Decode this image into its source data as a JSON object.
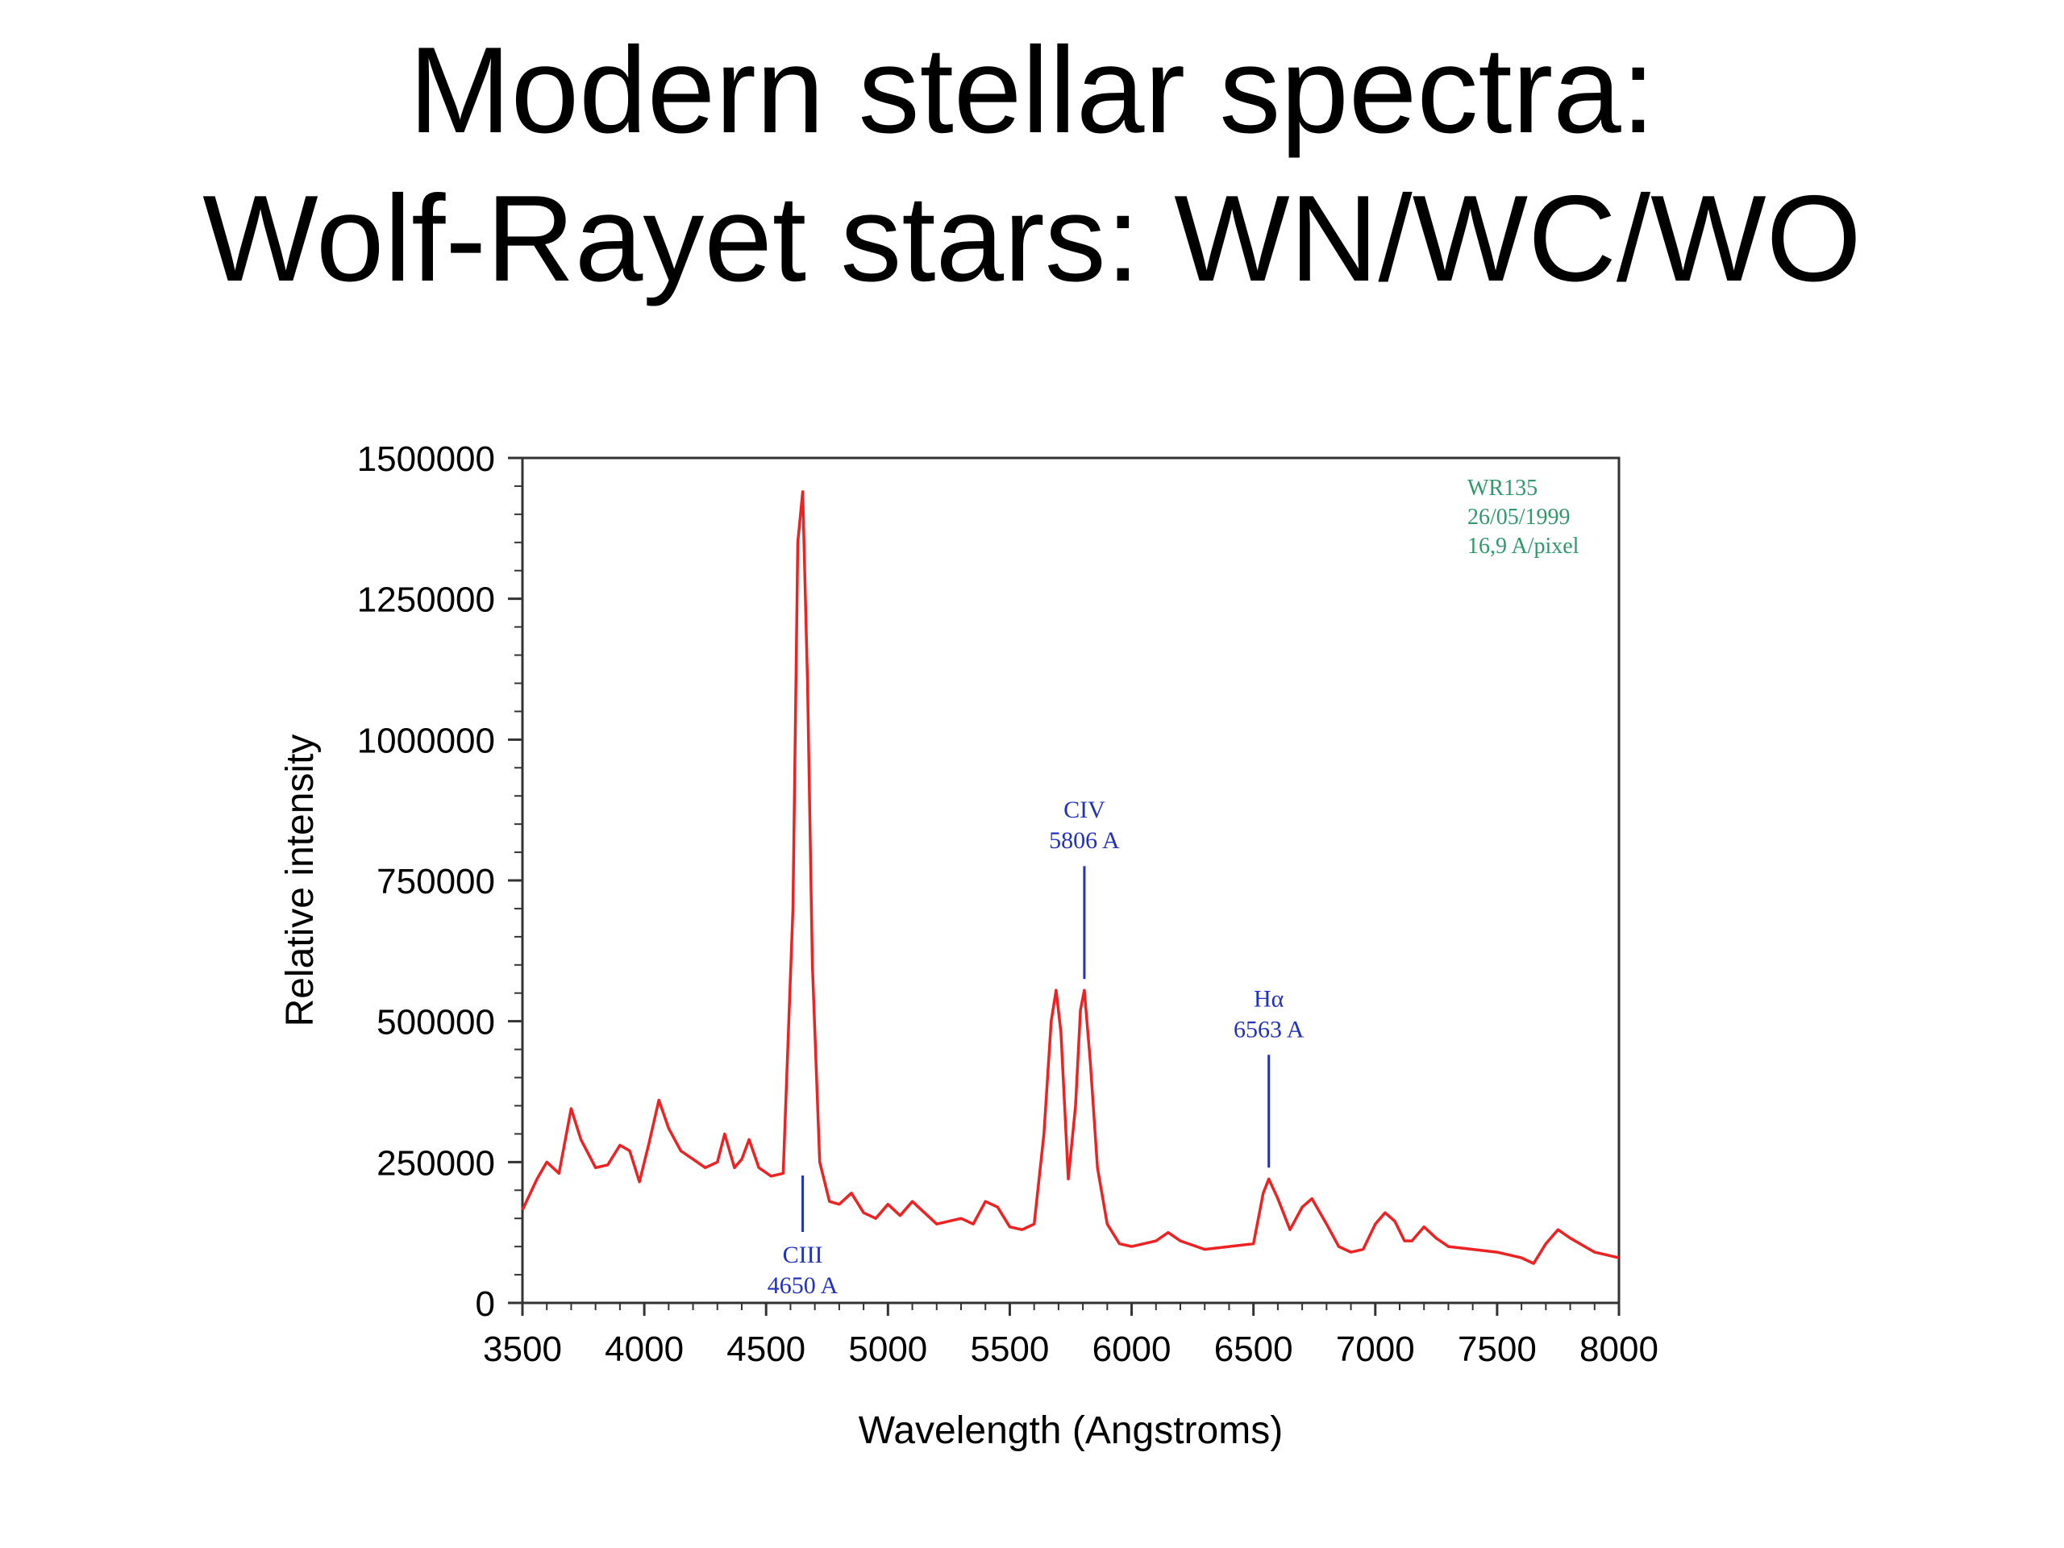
{
  "title": {
    "line1": "Modern stellar spectra:",
    "line2": "Wolf-Rayet stars: WN/WC/WO"
  },
  "chart_data": {
    "type": "line",
    "xlabel": "Wavelength (Angstroms)",
    "ylabel": "Relative intensity",
    "xlim": [
      3500,
      8000
    ],
    "ylim": [
      0,
      1500000
    ],
    "xticks": [
      "3500",
      "4000",
      "4500",
      "5000",
      "5500",
      "6000",
      "6500",
      "7000",
      "7500",
      "8000"
    ],
    "yticks": [
      "0",
      "250000",
      "500000",
      "750000",
      "1000000",
      "1250000",
      "1500000"
    ],
    "grid": false,
    "series": [
      {
        "color": "#ee2222",
        "x": [
          3500,
          3560,
          3600,
          3650,
          3700,
          3740,
          3800,
          3850,
          3900,
          3940,
          3980,
          4020,
          4060,
          4100,
          4150,
          4200,
          4250,
          4300,
          4330,
          4370,
          4400,
          4430,
          4470,
          4520,
          4570,
          4610,
          4630,
          4650,
          4670,
          4690,
          4720,
          4760,
          4800,
          4850,
          4900,
          4950,
          5000,
          5050,
          5100,
          5150,
          5200,
          5250,
          5300,
          5350,
          5400,
          5450,
          5500,
          5550,
          5600,
          5640,
          5670,
          5690,
          5710,
          5740,
          5770,
          5790,
          5806,
          5830,
          5860,
          5900,
          5950,
          6000,
          6050,
          6100,
          6150,
          6200,
          6300,
          6400,
          6500,
          6540,
          6563,
          6600,
          6650,
          6700,
          6740,
          6800,
          6850,
          6900,
          6950,
          7000,
          7040,
          7080,
          7120,
          7150,
          7200,
          7250,
          7300,
          7400,
          7500,
          7600,
          7650,
          7700,
          7750,
          7800,
          7900,
          8000
        ],
        "y": [
          165000,
          220000,
          250000,
          230000,
          345000,
          290000,
          240000,
          245000,
          280000,
          270000,
          215000,
          285000,
          360000,
          310000,
          270000,
          255000,
          240000,
          250000,
          300000,
          240000,
          255000,
          290000,
          240000,
          225000,
          230000,
          700000,
          1350000,
          1440000,
          1100000,
          600000,
          250000,
          180000,
          175000,
          195000,
          160000,
          150000,
          175000,
          155000,
          180000,
          160000,
          140000,
          145000,
          150000,
          140000,
          180000,
          170000,
          135000,
          130000,
          140000,
          300000,
          500000,
          555000,
          480000,
          220000,
          350000,
          520000,
          555000,
          430000,
          240000,
          140000,
          105000,
          100000,
          105000,
          110000,
          125000,
          110000,
          95000,
          100000,
          105000,
          195000,
          220000,
          185000,
          130000,
          170000,
          185000,
          140000,
          100000,
          90000,
          95000,
          140000,
          160000,
          145000,
          110000,
          110000,
          135000,
          115000,
          100000,
          95000,
          90000,
          80000,
          70000,
          105000,
          130000,
          115000,
          90000,
          80000
        ]
      }
    ],
    "annotations": [
      {
        "line1": "CIII",
        "line2": "4650 A",
        "x": 4650,
        "label_below": true
      },
      {
        "line1": "CIV",
        "line2": "5806 A",
        "x": 5806,
        "label_below": false
      },
      {
        "line1": "Hα",
        "line2": "6563 A",
        "x": 6563,
        "label_below": false
      }
    ],
    "info_box": {
      "line1": "WR135",
      "line2": "26/05/1999",
      "line3": "16,9 A/pixel"
    }
  }
}
